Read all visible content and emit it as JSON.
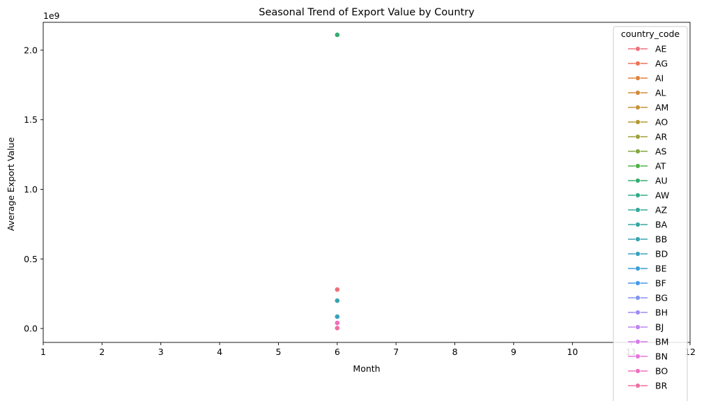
{
  "chart_data": {
    "type": "line",
    "title": "Seasonal Trend of Export Value by Country",
    "xlabel": "Month",
    "ylabel": "Average Export Value",
    "y_offset_text": "1e9",
    "xlim": [
      1,
      12
    ],
    "ylim": [
      -0.1,
      2.2
    ],
    "x_ticks": [
      1,
      2,
      3,
      4,
      5,
      6,
      7,
      8,
      9,
      10,
      11,
      12
    ],
    "y_ticks": [
      0.0,
      0.5,
      1.0,
      1.5,
      2.0
    ],
    "y_tick_labels": [
      "0.0",
      "0.5",
      "1.0",
      "1.5",
      "2.0"
    ],
    "grid": false,
    "legend": {
      "title": "country_code",
      "placement": "right",
      "entries": [
        {
          "name": "AE",
          "color": "#f0707a"
        },
        {
          "name": "AG",
          "color": "#ef7357"
        },
        {
          "name": "AI",
          "color": "#e1823b"
        },
        {
          "name": "AL",
          "color": "#d38b3c"
        },
        {
          "name": "AM",
          "color": "#c59439"
        },
        {
          "name": "AO",
          "color": "#b39a35"
        },
        {
          "name": "AR",
          "color": "#9fa13a"
        },
        {
          "name": "AS",
          "color": "#84a83f"
        },
        {
          "name": "AT",
          "color": "#4fb148"
        },
        {
          "name": "AU",
          "color": "#34ad72"
        },
        {
          "name": "AW",
          "color": "#32ab8a"
        },
        {
          "name": "AZ",
          "color": "#35a89b"
        },
        {
          "name": "BA",
          "color": "#36a6a5"
        },
        {
          "name": "BB",
          "color": "#38a4b0"
        },
        {
          "name": "BD",
          "color": "#3aa2bd"
        },
        {
          "name": "BE",
          "color": "#3c9ed6"
        },
        {
          "name": "BF",
          "color": "#479bea"
        },
        {
          "name": "BG",
          "color": "#8293ef"
        },
        {
          "name": "BH",
          "color": "#a18cf0"
        },
        {
          "name": "BJ",
          "color": "#bd85f0"
        },
        {
          "name": "BM",
          "color": "#d87ceb"
        },
        {
          "name": "BN",
          "color": "#e874dc"
        },
        {
          "name": "BO",
          "color": "#ef6fbe"
        },
        {
          "name": "BR",
          "color": "#f06fa2"
        }
      ]
    },
    "series": [
      {
        "name": "AE",
        "color": "#f0707a",
        "points": [
          {
            "x": 6,
            "y": 0.28
          }
        ]
      },
      {
        "name": "AU",
        "color": "#34ad72",
        "points": [
          {
            "x": 6,
            "y": 2.11
          }
        ]
      },
      {
        "name": "BB",
        "color": "#38a4b0",
        "points": [
          {
            "x": 6,
            "y": 0.2
          }
        ]
      },
      {
        "name": "BD",
        "color": "#3aa2bd",
        "points": [
          {
            "x": 6,
            "y": 0.085
          }
        ]
      },
      {
        "name": "BO",
        "color": "#ef6fbe",
        "points": [
          {
            "x": 6,
            "y": 0.04
          }
        ]
      },
      {
        "name": "BR",
        "color": "#f06fa2",
        "points": [
          {
            "x": 6,
            "y": 0.003
          }
        ]
      }
    ]
  }
}
